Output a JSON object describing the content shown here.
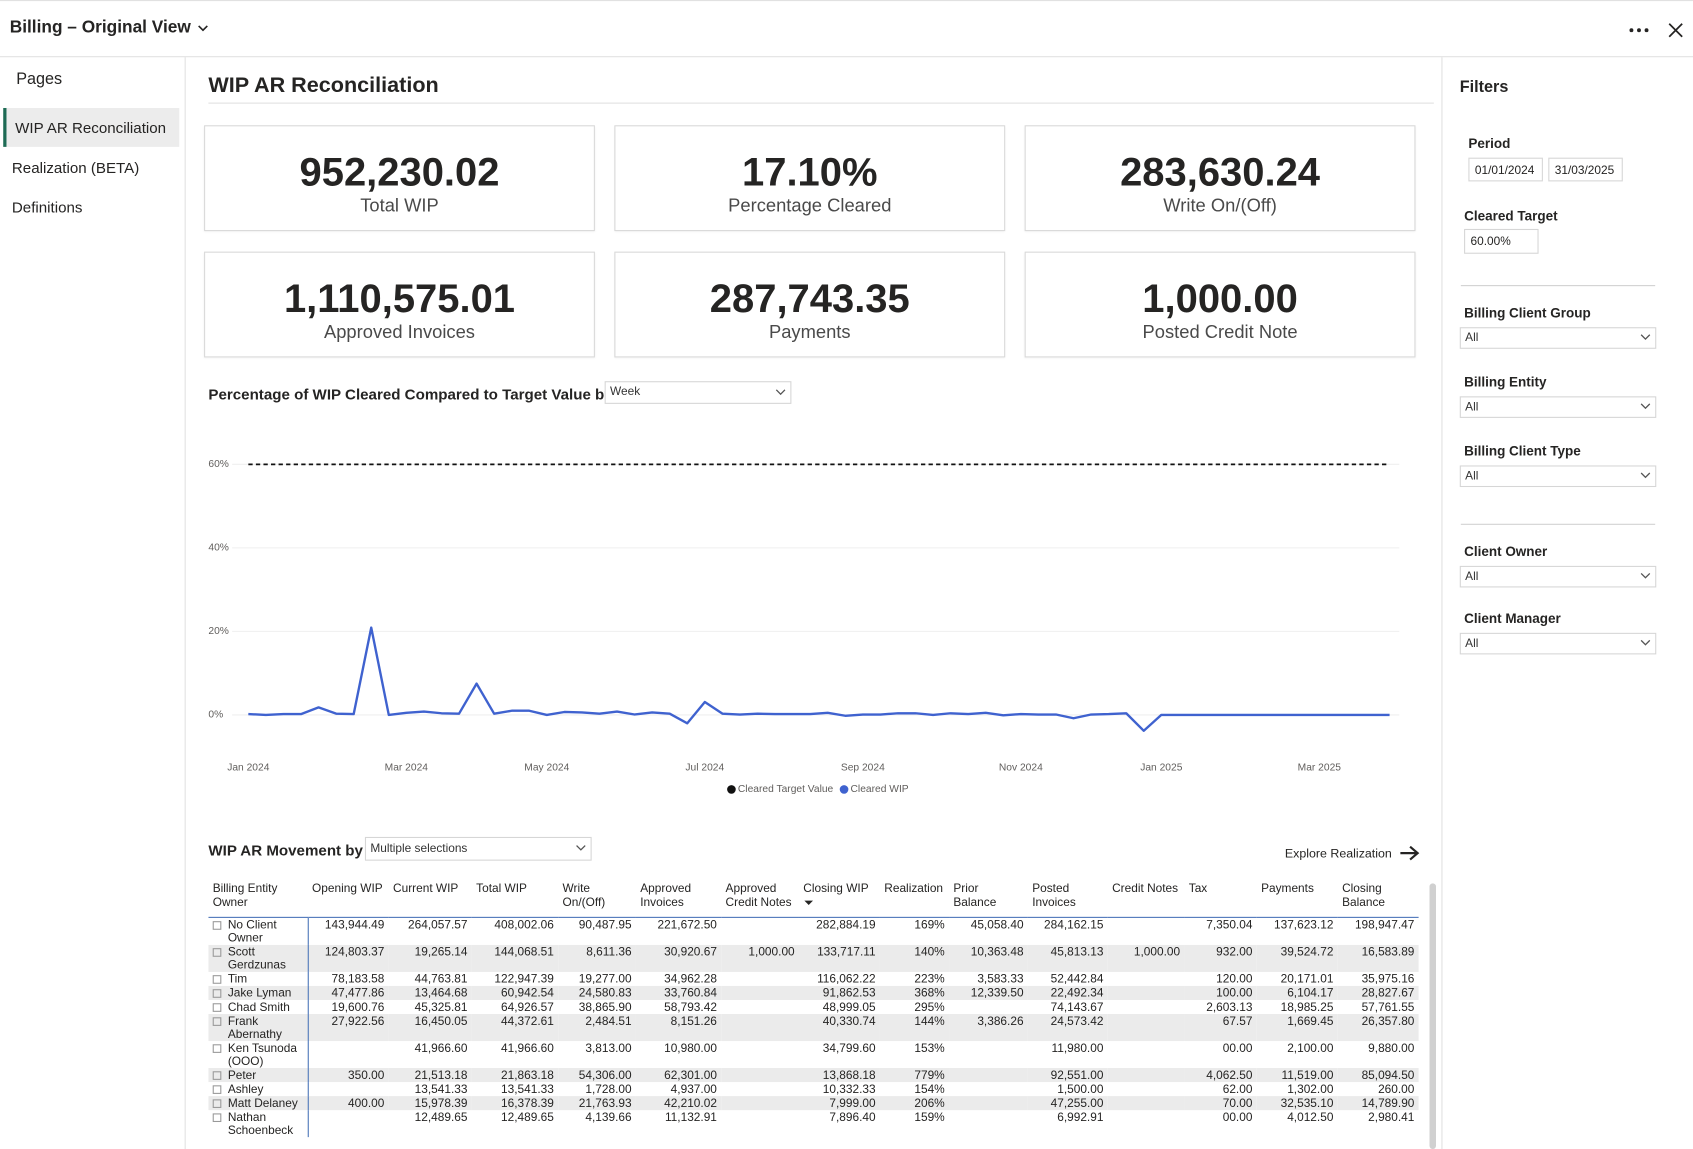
{
  "header": {
    "title": "Billing – Original View"
  },
  "sidebar": {
    "title": "Pages",
    "items": [
      "WIP AR Reconciliation",
      "Realization (BETA)",
      "Definitions"
    ],
    "active": 0
  },
  "report": {
    "title": "WIP AR Reconciliation"
  },
  "kpis": [
    {
      "value": "952,230.02",
      "label": "Total WIP"
    },
    {
      "value": "17.10%",
      "label": "Percentage Cleared"
    },
    {
      "value": "283,630.24",
      "label": "Write On/(Off)"
    },
    {
      "value": "1,110,575.01",
      "label": "Approved Invoices"
    },
    {
      "value": "287,743.35",
      "label": "Payments"
    },
    {
      "value": "1,000.00",
      "label": "Posted Credit Note"
    }
  ],
  "chart_data": {
    "type": "line",
    "title": "Percentage of WIP Cleared Compared to Target Value by",
    "period_selector": "Week",
    "categories": [
      "Jan 2024",
      null,
      null,
      null,
      null,
      null,
      null,
      null,
      null,
      "Mar 2024",
      null,
      null,
      null,
      null,
      null,
      null,
      null,
      "May 2024",
      null,
      null,
      null,
      null,
      null,
      null,
      null,
      null,
      "Jul 2024",
      null,
      null,
      null,
      null,
      null,
      null,
      null,
      null,
      "Sep 2024",
      null,
      null,
      null,
      null,
      null,
      null,
      null,
      null,
      "Nov 2024",
      null,
      null,
      null,
      null,
      null,
      null,
      null,
      "Jan 2025",
      null,
      null,
      null,
      null,
      null,
      null,
      null,
      null,
      "Mar 2025",
      null,
      null,
      null,
      null
    ],
    "series": [
      {
        "name": "Cleared Target Value",
        "color": "#111111",
        "line_style": "dashed",
        "values": [
          60,
          60,
          60,
          60,
          60,
          60,
          60,
          60,
          60,
          60,
          60,
          60,
          60,
          60,
          60,
          60,
          60,
          60,
          60,
          60,
          60,
          60,
          60,
          60,
          60,
          60,
          60,
          60,
          60,
          60,
          60,
          60,
          60,
          60,
          60,
          60,
          60,
          60,
          60,
          60,
          60,
          60,
          60,
          60,
          60,
          60,
          60,
          60,
          60,
          60,
          60,
          60,
          60,
          60,
          60,
          60,
          60,
          60,
          60,
          60,
          60,
          60,
          60,
          60,
          60,
          60
        ]
      },
      {
        "name": "Cleared WIP",
        "color": "#3f62cf",
        "line_style": "solid",
        "values": [
          0.2,
          0,
          0.2,
          0.2,
          1.8,
          0.3,
          0.2,
          20.9,
          0,
          0.5,
          0.8,
          0.4,
          0.3,
          7.5,
          0.3,
          1,
          1,
          0,
          0.7,
          0.6,
          0.3,
          0.8,
          0.1,
          0.6,
          0.3,
          -2,
          3.1,
          0.3,
          0.1,
          0.3,
          0.2,
          0.2,
          0.2,
          0.5,
          -0.2,
          0.1,
          0.1,
          0.4,
          0.4,
          0,
          0.4,
          0.2,
          0.5,
          -0.1,
          0.2,
          0.1,
          0.1,
          -0.8,
          0.1,
          0.2,
          0.4,
          -3.8,
          0,
          0,
          0,
          0,
          0,
          0,
          0,
          0,
          0,
          0,
          0,
          0,
          0,
          0
        ]
      }
    ],
    "ylim": [
      -10,
      70
    ],
    "yticks": [
      {
        "value": 0,
        "label": "0%"
      },
      {
        "value": 20,
        "label": "20%"
      },
      {
        "value": 40,
        "label": "40%"
      },
      {
        "value": 60,
        "label": "60%"
      }
    ],
    "grid": true
  },
  "table": {
    "title": "WIP AR Movement by",
    "selector": "Multiple selections",
    "link": "Explore Realization",
    "columns": [
      "Billing Entity Owner",
      "Opening WIP",
      "Current WIP",
      "Total WIP",
      "Write On/(Off)",
      "Approved Invoices",
      "Approved Credit Notes",
      "Closing WIP",
      "Realization",
      "Prior Balance",
      "Posted Invoices",
      "Credit Notes",
      "Tax",
      "Payments",
      "Closing Balance"
    ],
    "rows": [
      [
        "No Client Owner",
        "143,944.49",
        "264,057.57",
        "408,002.06",
        "90,487.95",
        "221,672.50",
        null,
        "282,884.19",
        "169%",
        "45,058.40",
        "284,162.15",
        null,
        "7,350.04",
        "137,623.12",
        "198,947.47"
      ],
      [
        "Scott Gerdzunas",
        "124,803.37",
        "19,265.14",
        "144,068.51",
        "8,611.36",
        "30,920.67",
        "1,000.00",
        "133,717.11",
        "140%",
        "10,363.48",
        "45,813.13",
        "1,000.00",
        "932.00",
        "39,524.72",
        "16,583.89"
      ],
      [
        "Tim",
        "78,183.58",
        "44,763.81",
        "122,947.39",
        "19,277.00",
        "34,962.28",
        null,
        "116,062.22",
        "223%",
        "3,583.33",
        "52,442.84",
        null,
        "120.00",
        "20,171.01",
        "35,975.16"
      ],
      [
        "Jake Lyman",
        "47,477.86",
        "13,464.68",
        "60,942.54",
        "24,580.83",
        "33,760.84",
        null,
        "91,862.53",
        "368%",
        "12,339.50",
        "22,492.34",
        null,
        "100.00",
        "6,104.17",
        "28,827.67"
      ],
      [
        "Chad Smith",
        "19,600.76",
        "45,325.81",
        "64,926.57",
        "38,865.90",
        "58,793.42",
        null,
        "48,999.05",
        "295%",
        null,
        "74,143.67",
        null,
        "2,603.13",
        "18,985.25",
        "57,761.55"
      ],
      [
        "Frank Abernathy",
        "27,922.56",
        "16,450.05",
        "44,372.61",
        "2,484.51",
        "8,151.26",
        null,
        "40,330.74",
        "144%",
        "3,386.26",
        "24,573.42",
        null,
        "67.57",
        "1,669.45",
        "26,357.80"
      ],
      [
        "Ken Tsunoda (OOO)",
        null,
        "41,966.60",
        "41,966.60",
        "3,813.00",
        "10,980.00",
        null,
        "34,799.60",
        "153%",
        null,
        "11,980.00",
        null,
        "00.00",
        "2,100.00",
        "9,880.00"
      ],
      [
        "Peter",
        "350.00",
        "21,513.18",
        "21,863.18",
        "54,306.00",
        "62,301.00",
        null,
        "13,868.18",
        "779%",
        null,
        "92,551.00",
        null,
        "4,062.50",
        "11,519.00",
        "85,094.50"
      ],
      [
        "Ashley",
        null,
        "13,541.33",
        "13,541.33",
        "1,728.00",
        "4,937.00",
        null,
        "10,332.33",
        "154%",
        null,
        "1,500.00",
        null,
        "62.00",
        "1,302.00",
        "260.00"
      ],
      [
        "Matt Delaney",
        "400.00",
        "15,978.39",
        "16,378.39",
        "21,763.93",
        "42,210.02",
        null,
        "7,999.00",
        "206%",
        null,
        "47,255.00",
        null,
        "70.00",
        "32,535.10",
        "14,789.90"
      ],
      [
        "Nathan Schoenbeck",
        null,
        "12,489.65",
        "12,489.65",
        "4,139.66",
        "11,132.91",
        null,
        "7,896.40",
        "159%",
        null,
        "6,992.91",
        null,
        "00.00",
        "4,012.50",
        "2,980.41"
      ]
    ]
  },
  "filters": {
    "title": "Filters",
    "period": {
      "label": "Period",
      "from": "01/01/2024",
      "to": "31/03/2025"
    },
    "cleared_target": {
      "label": "Cleared Target",
      "value": "60.00%"
    },
    "dropdowns": [
      {
        "label": "Billing Client Group",
        "value": "All"
      },
      {
        "label": "Billing Entity",
        "value": "All"
      },
      {
        "label": "Billing Client Type",
        "value": "All"
      },
      {
        "label": "Client Owner",
        "value": "All"
      },
      {
        "label": "Client Manager",
        "value": "All"
      }
    ]
  }
}
